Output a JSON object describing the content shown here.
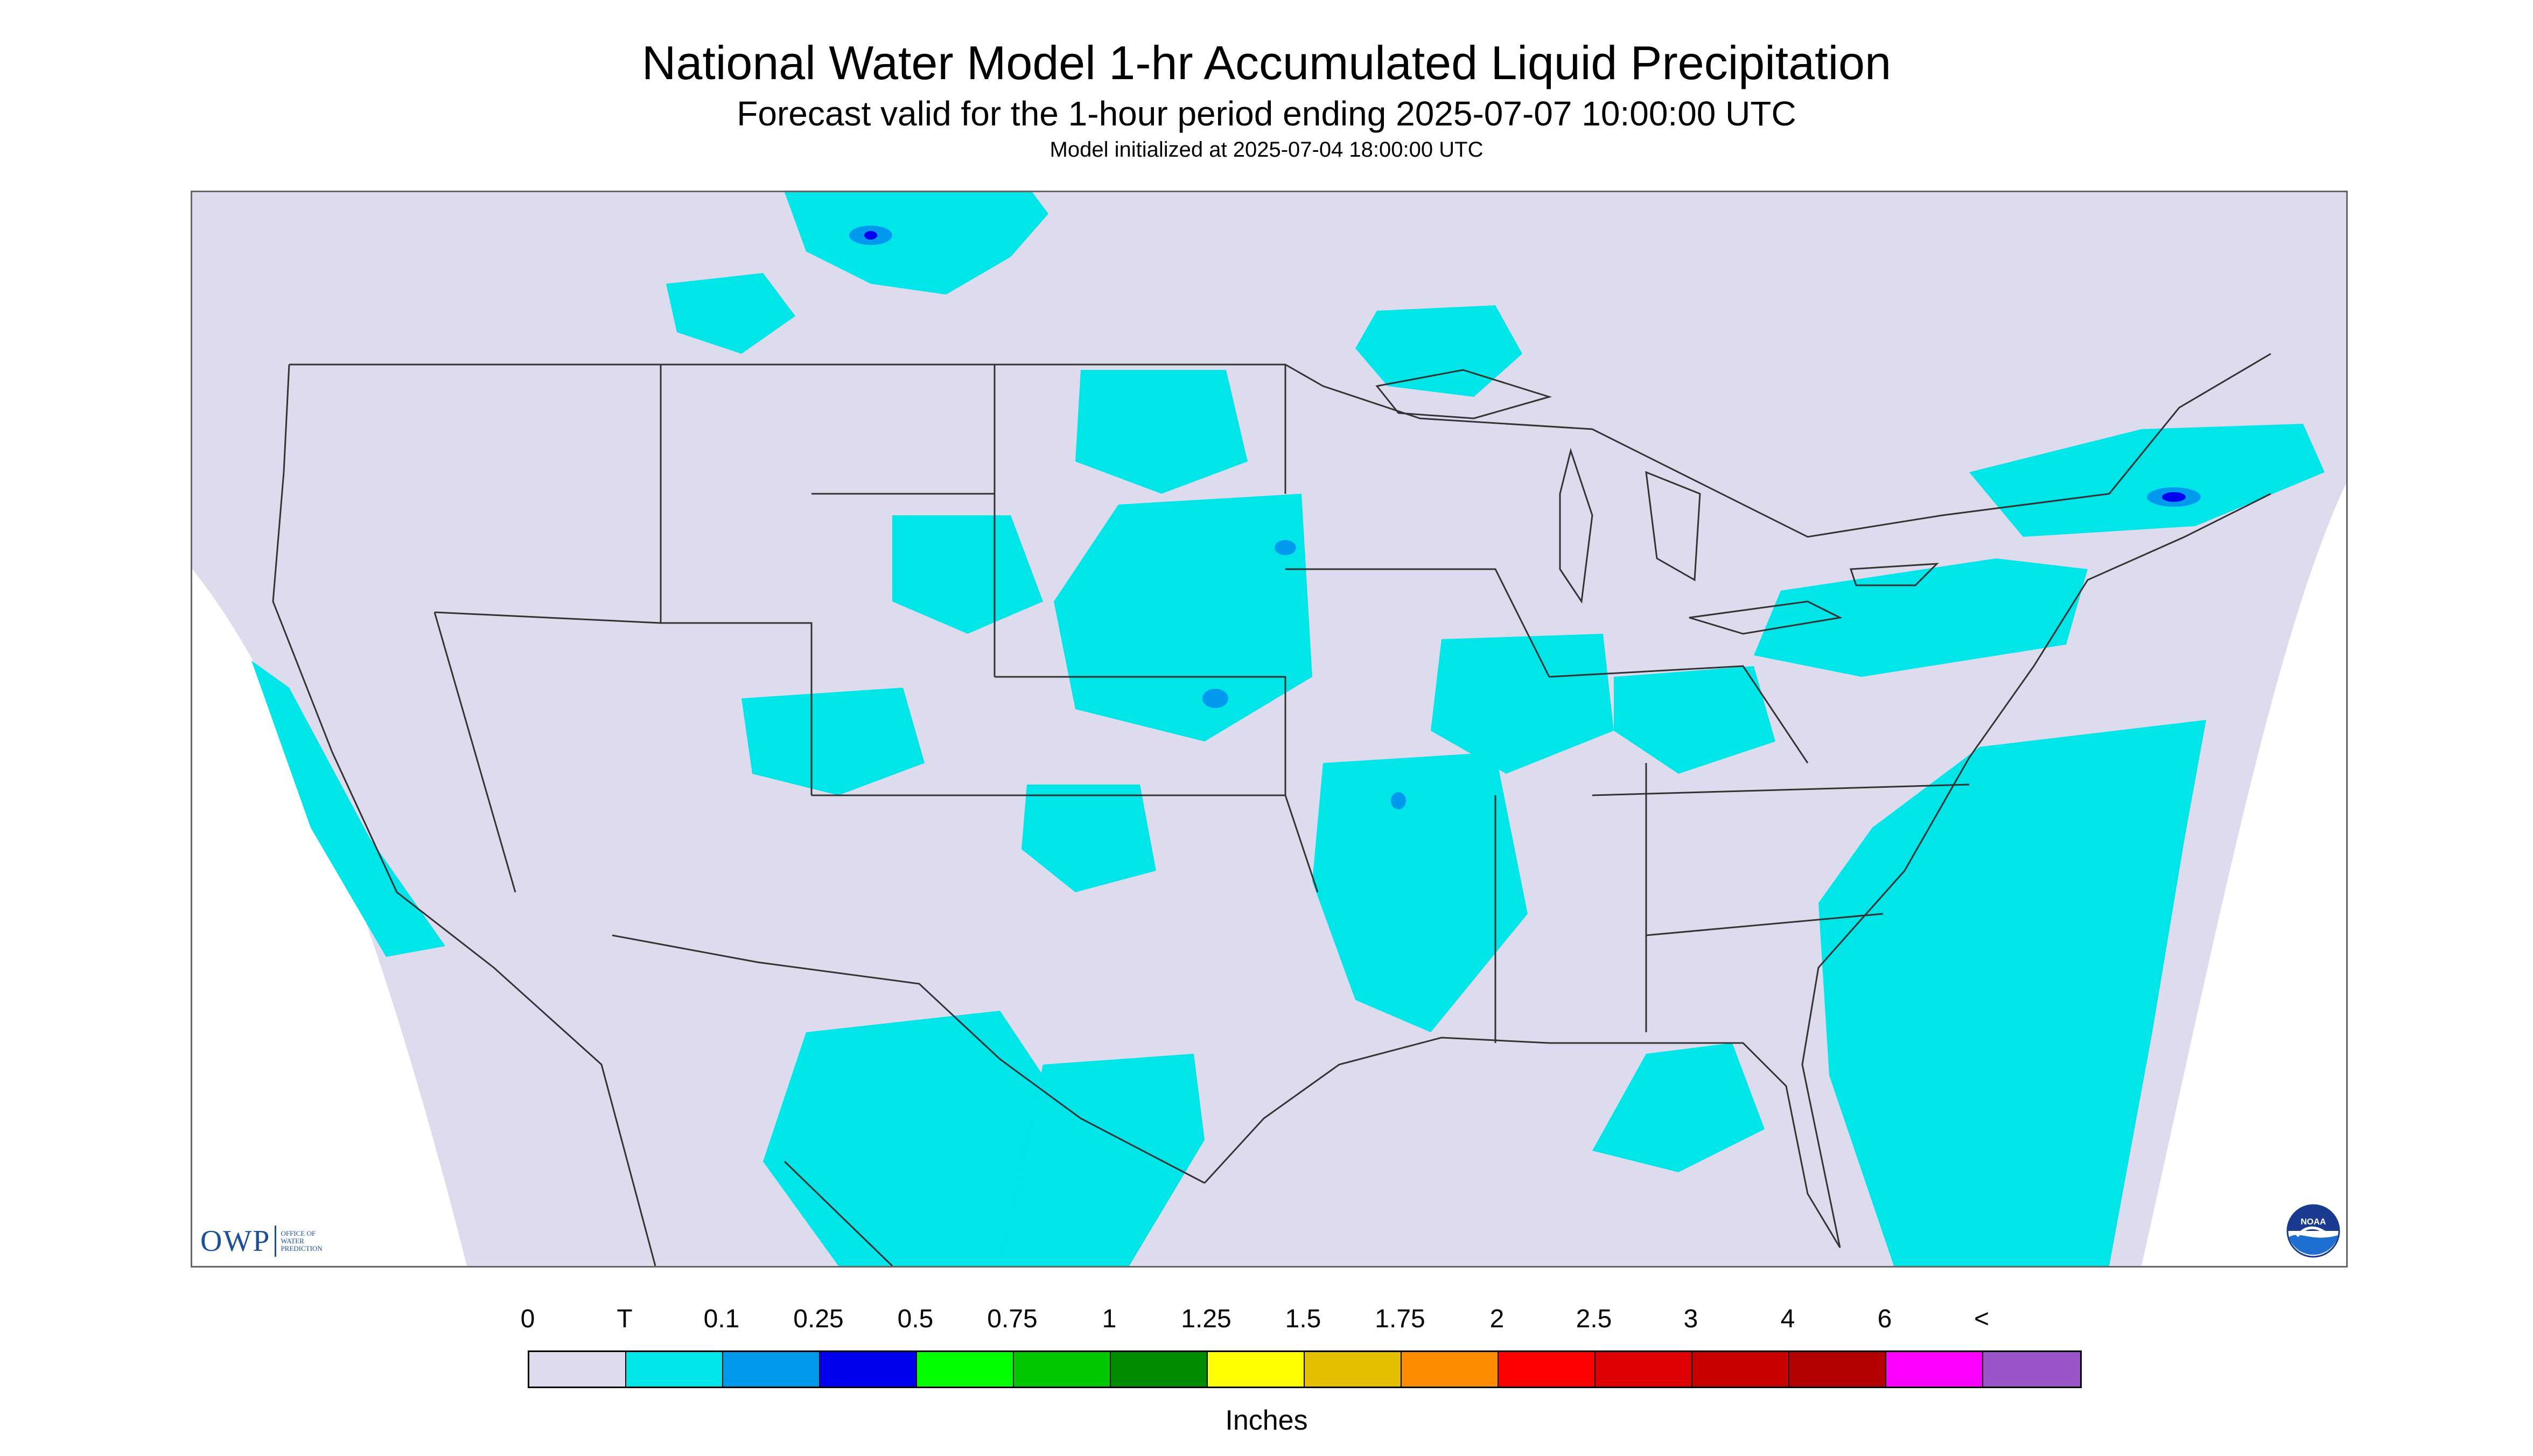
{
  "header": {
    "title": "National Water Model 1-hr Accumulated Liquid Precipitation",
    "subtitle": "Forecast valid for the 1-hour period ending 2025-07-07 10:00:00 UTC",
    "init": "Model initialized at 2025-07-04 18:00:00 UTC"
  },
  "logos": {
    "owp_text": "OWP",
    "owp_sub": [
      "OFFICE OF",
      "WATER",
      "PREDICTION"
    ],
    "noaa_text": "NOAA"
  },
  "colors": {
    "map_background": "#dcdcee",
    "outside_domain": "#ffffff",
    "boundary": "#333333",
    "trace": "#00e5e8",
    "light_blue": "#0099f0",
    "blue": "#0000f0"
  },
  "legend": {
    "labels": [
      "0",
      "T",
      "0.1",
      "0.25",
      "0.5",
      "0.75",
      "1",
      "1.25",
      "1.5",
      "1.75",
      "2",
      "2.5",
      "3",
      "4",
      "6",
      "<"
    ],
    "colors": [
      "#dcdcee",
      "#00e5e8",
      "#0099f0",
      "#0000f0",
      "#00ff00",
      "#00c800",
      "#008c00",
      "#ffff00",
      "#e6be00",
      "#ff8c00",
      "#ff0000",
      "#dc0000",
      "#c80000",
      "#b40000",
      "#ff00ff",
      "#9955c8"
    ],
    "units": "Inches"
  }
}
